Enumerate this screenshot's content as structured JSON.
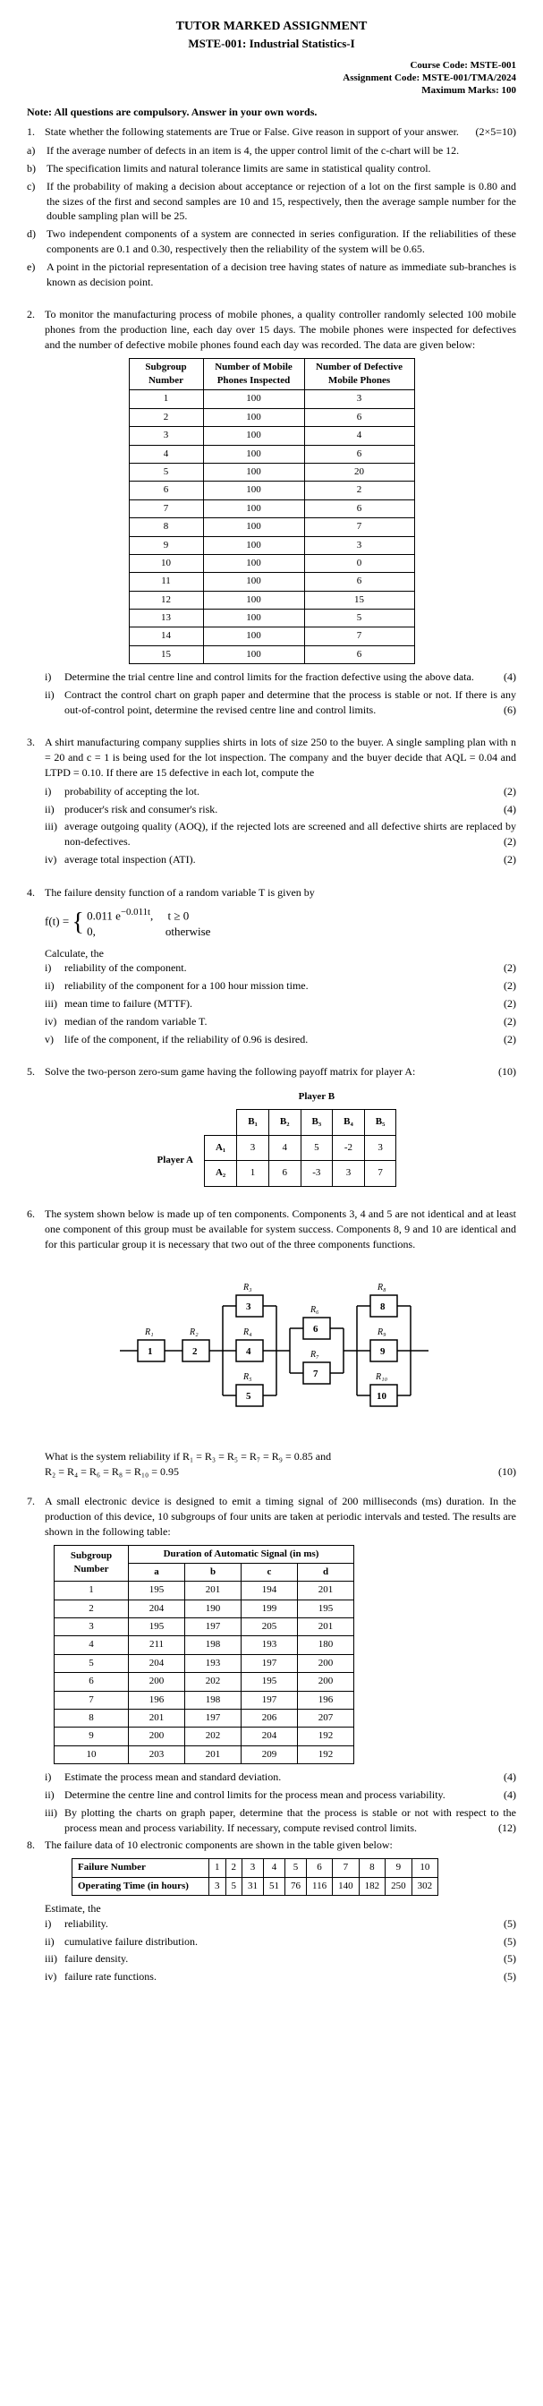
{
  "header": {
    "title": "TUTOR MARKED ASSIGNMENT",
    "subtitle": "MSTE-001: Industrial Statistics-I",
    "course_code_label": "Course Code: MSTE-001",
    "assignment_code_label": "Assignment Code: MSTE-001/TMA/2024",
    "max_marks_label": "Maximum Marks: 100"
  },
  "note": "Note: All questions are compulsory. Answer in your own words.",
  "q1": {
    "num": "1.",
    "text": "State whether the following statements are True or False. Give reason in support of your answer.",
    "marks": "(2×5=10)",
    "a_num": "a)",
    "a": "If the average number of defects in an item is 4, the upper control limit of the c-chart will be 12.",
    "b_num": "b)",
    "b": "The specification limits and natural tolerance limits are same in statistical quality control.",
    "c_num": "c)",
    "c": "If the probability of making a decision about acceptance or rejection of a lot on the first sample is 0.80 and the sizes of the first and second samples are 10 and 15, respectively, then the average sample number for the double sampling plan will be 25.",
    "d_num": "d)",
    "d": "Two independent components of a system are connected in series configuration. If the reliabilities of these components are 0.1 and 0.30, respectively then the reliability of the system will be 0.65.",
    "e_num": "e)",
    "e": "A point in the pictorial representation of a decision tree having states of nature as immediate sub-branches is known as decision point."
  },
  "q2": {
    "num": "2.",
    "text": "To monitor the manufacturing process of mobile phones, a quality controller randomly selected 100 mobile phones from the production line, each day over 15 days. The mobile phones were inspected for defectives and the number of defective mobile phones found each day was recorded. The data are given below:",
    "table_headers": [
      "Subgroup Number",
      "Number of Mobile Phones Inspected",
      "Number of Defective Mobile Phones"
    ],
    "rows": [
      [
        "1",
        "100",
        "3"
      ],
      [
        "2",
        "100",
        "6"
      ],
      [
        "3",
        "100",
        "4"
      ],
      [
        "4",
        "100",
        "6"
      ],
      [
        "5",
        "100",
        "20"
      ],
      [
        "6",
        "100",
        "2"
      ],
      [
        "7",
        "100",
        "6"
      ],
      [
        "8",
        "100",
        "7"
      ],
      [
        "9",
        "100",
        "3"
      ],
      [
        "10",
        "100",
        "0"
      ],
      [
        "11",
        "100",
        "6"
      ],
      [
        "12",
        "100",
        "15"
      ],
      [
        "13",
        "100",
        "5"
      ],
      [
        "14",
        "100",
        "7"
      ],
      [
        "15",
        "100",
        "6"
      ]
    ],
    "i_num": "i)",
    "i": "Determine the trial centre line and control limits for the fraction defective using the above data.",
    "i_marks": "(4)",
    "ii_num": "ii)",
    "ii": "Contract the control chart on graph paper and determine that the process is stable or not. If there is any out-of-control point, determine the revised centre line and control limits.",
    "ii_marks": "(6)"
  },
  "q3": {
    "num": "3.",
    "text": "A shirt manufacturing company supplies shirts in lots of size 250 to the buyer. A single sampling plan with n = 20 and c = 1 is being used for the lot inspection. The company and the buyer decide that AQL = 0.04 and LTPD = 0.10. If there are 15 defective in each lot, compute the",
    "i_num": "i)",
    "i": "probability of accepting the lot.",
    "i_marks": "(2)",
    "ii_num": "ii)",
    "ii": "producer's risk and consumer's risk.",
    "ii_marks": "(4)",
    "iii_num": "iii)",
    "iii": "average outgoing quality (AOQ), if the rejected lots are screened and all defective shirts are replaced by non-defectives.",
    "iii_marks": "(2)",
    "iv_num": "iv)",
    "iv": "average total inspection (ATI).",
    "iv_marks": "(2)"
  },
  "q4": {
    "num": "4.",
    "text": "The failure density function of a random variable T is given by",
    "calc": "Calculate, the",
    "i_num": "i)",
    "i": "reliability of the component.",
    "i_marks": "(2)",
    "ii_num": "ii)",
    "ii": "reliability of the component for a 100 hour mission time.",
    "ii_marks": "(2)",
    "iii_num": "iii)",
    "iii": "mean time to failure (MTTF).",
    "iii_marks": "(2)",
    "iv_num": "iv)",
    "iv": "median of the random variable T.",
    "iv_marks": "(2)",
    "v_num": "v)",
    "v": "life of the component, if the reliability of 0.96 is desired.",
    "v_marks": "(2)"
  },
  "q5": {
    "num": "5.",
    "text": "Solve the two-person zero-sum game having the following payoff matrix for player A:",
    "marks": "(10)",
    "player_b": "Player B",
    "player_a": "Player A",
    "cols": [
      "B₁",
      "B₂",
      "B₃",
      "B₄",
      "B₅"
    ],
    "rows_labels": [
      "A₁",
      "A₂"
    ],
    "matrix": [
      [
        "3",
        "4",
        "5",
        "-2",
        "3"
      ],
      [
        "1",
        "6",
        "-3",
        "3",
        "7"
      ]
    ]
  },
  "q6": {
    "num": "6.",
    "text": "The system shown below is made up of ten components. Components 3, 4 and 5 are not identical and at least one component of this group must be available for system success. Components 8, 9 and 10 are identical and for this particular group it is necessary that two out of the three components functions.",
    "nodes": {
      "r1": "R₁",
      "r2": "R₂",
      "r3": "R₃",
      "r4": "R₄",
      "r5": "R₅",
      "r6": "R₆",
      "r7": "R₇",
      "r8": "R₈",
      "r9": "R₉",
      "r10": "R₁₀",
      "1": "1",
      "2": "2",
      "3": "3",
      "4": "4",
      "5": "5",
      "6": "6",
      "7": "7",
      "8": "8",
      "9": "9",
      "10": "10"
    },
    "reliability_text": "What is the system reliability if R₁ = R₃ = R₅ = R₇ = R₉ = 0.85 and",
    "reliability_text2": "R₂ = R₄ = R₆ = R₈ = R₁₀ = 0.95",
    "marks": "(10)"
  },
  "q7": {
    "num": "7.",
    "text": "A small electronic device is designed to emit a timing signal of 200 milliseconds (ms) duration. In the production of this device, 10 subgroups of four units are taken at periodic intervals and tested. The results are shown in the following table:",
    "th1": "Subgroup Number",
    "th2": "Duration of Automatic Signal (in ms)",
    "cols": [
      "a",
      "b",
      "c",
      "d"
    ],
    "rows": [
      [
        "1",
        "195",
        "201",
        "194",
        "201"
      ],
      [
        "2",
        "204",
        "190",
        "199",
        "195"
      ],
      [
        "3",
        "195",
        "197",
        "205",
        "201"
      ],
      [
        "4",
        "211",
        "198",
        "193",
        "180"
      ],
      [
        "5",
        "204",
        "193",
        "197",
        "200"
      ],
      [
        "6",
        "200",
        "202",
        "195",
        "200"
      ],
      [
        "7",
        "196",
        "198",
        "197",
        "196"
      ],
      [
        "8",
        "201",
        "197",
        "206",
        "207"
      ],
      [
        "9",
        "200",
        "202",
        "204",
        "192"
      ],
      [
        "10",
        "203",
        "201",
        "209",
        "192"
      ]
    ],
    "i_num": "i)",
    "i": "Estimate the process mean and standard deviation.",
    "i_marks": "(4)",
    "ii_num": "ii)",
    "ii": "Determine the centre line and control limits for the process mean and process variability.",
    "ii_marks": "(4)",
    "iii_num": "iii)",
    "iii": "By plotting the charts on graph paper, determine that the process is stable or not with respect to the process mean and process variability. If necessary, compute revised control limits.",
    "iii_marks": "(12)"
  },
  "q8": {
    "num": "8.",
    "text": "The failure data of 10 electronic components are shown in the table given below:",
    "row1_label": "Failure Number",
    "row1": [
      "1",
      "2",
      "3",
      "4",
      "5",
      "6",
      "7",
      "8",
      "9",
      "10"
    ],
    "row2_label": "Operating Time (in hours)",
    "row2": [
      "3",
      "5",
      "31",
      "51",
      "76",
      "116",
      "140",
      "182",
      "250",
      "302"
    ],
    "estimate": "Estimate, the",
    "i_num": "i)",
    "i": "reliability.",
    "i_marks": "(5)",
    "ii_num": "ii)",
    "ii": "cumulative failure distribution.",
    "ii_marks": "(5)",
    "iii_num": "iii)",
    "iii": "failure density.",
    "iii_marks": "(5)",
    "iv_num": "iv)",
    "iv": "failure rate functions.",
    "iv_marks": "(5)"
  }
}
